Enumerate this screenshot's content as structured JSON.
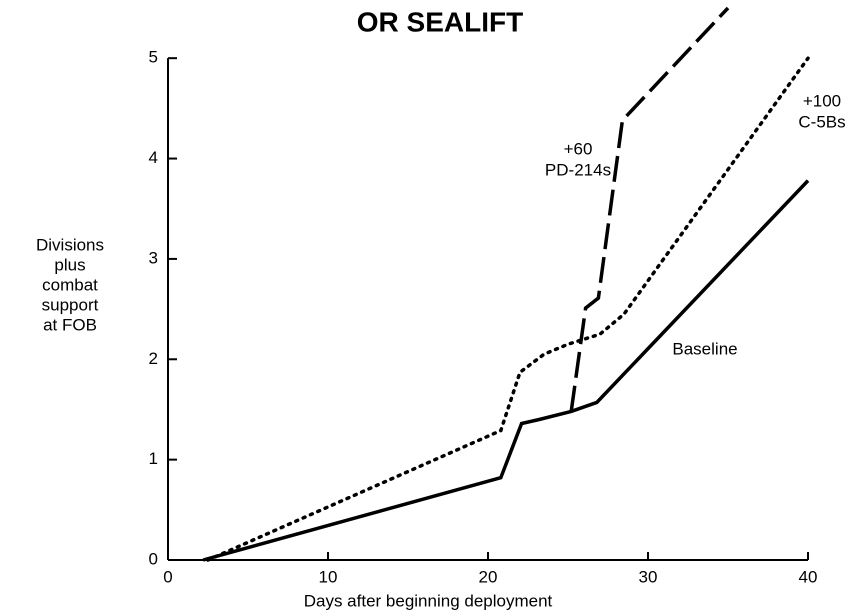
{
  "chart_data": {
    "type": "line",
    "title": "OR SEALIFT",
    "xlabel": "Days after beginning deployment",
    "ylabel": [
      "Divisions",
      "plus",
      "combat",
      "support",
      "at FOB"
    ],
    "xlim": [
      0,
      40
    ],
    "xticks": [
      0,
      10,
      20,
      30,
      40
    ],
    "ylim": [
      0,
      5.5
    ],
    "yticks": [
      0,
      1,
      2,
      3,
      4,
      5
    ],
    "grid": false,
    "series": [
      {
        "name": "Baseline",
        "color": "#000000",
        "style": "solid",
        "x": [
          2.2,
          20.8,
          22.1,
          23.2,
          25.2,
          26.8,
          40
        ],
        "values": [
          0,
          0.82,
          1.36,
          1.4,
          1.48,
          1.57,
          3.78
        ]
      },
      {
        "name": "+60 PD-214s",
        "color": "#000000",
        "style": "dashed",
        "x": [
          25.2,
          26.1,
          26.9,
          28.4,
          35
        ],
        "values": [
          1.48,
          2.51,
          2.61,
          4.38,
          5.5
        ]
      },
      {
        "name": "+100 C-5Bs",
        "color": "#000000",
        "style": "dotted",
        "x": [
          2.5,
          20.8,
          22,
          23.5,
          25,
          27,
          28.5,
          40
        ],
        "values": [
          0,
          1.29,
          1.87,
          2.05,
          2.15,
          2.25,
          2.45,
          5
        ]
      }
    ],
    "annotations": [
      [
        "+60",
        "PD-214s"
      ],
      [
        "+100",
        "C-5Bs"
      ],
      [
        "Baseline"
      ]
    ]
  }
}
